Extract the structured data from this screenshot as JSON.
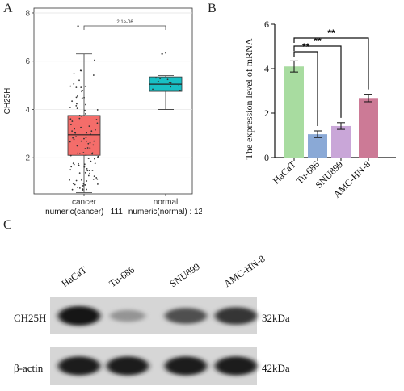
{
  "panels": {
    "a": "A",
    "b": "B",
    "c": "C"
  },
  "chart_data": [
    {
      "type": "box",
      "ylabel": "CH25H",
      "ylim": [
        0.5,
        8.2
      ],
      "yticks": [
        2,
        4,
        6,
        8
      ],
      "categories": [
        "cancer",
        "normal"
      ],
      "counts": [
        "numeric(cancer) : 111",
        "numeric(normal) : 12"
      ],
      "colors": [
        "#f46d6a",
        "#19bfc4"
      ],
      "boxes": [
        {
          "name": "cancer",
          "whisker_low": 0.55,
          "q1": 2.1,
          "median": 2.95,
          "q3": 3.75,
          "whisker_high": 6.3,
          "outliers": [
            7.45
          ]
        },
        {
          "name": "normal",
          "whisker_low": 4.0,
          "q1": 4.75,
          "median": 5.05,
          "q3": 5.35,
          "whisker_high": 5.4,
          "outliers": [
            6.3,
            6.35
          ]
        }
      ],
      "significance": "2.1e-06"
    },
    {
      "type": "bar",
      "ylabel": "The expression level of mRNA",
      "ylim": [
        0,
        6
      ],
      "yticks": [
        0,
        2,
        4,
        6
      ],
      "categories": [
        "HaCaT",
        "Tu-686",
        "SNU899",
        "AMC-HN-8"
      ],
      "values": [
        4.1,
        1.05,
        1.42,
        2.68
      ],
      "errors": [
        0.25,
        0.15,
        0.15,
        0.17
      ],
      "colors": [
        "#a8dca0",
        "#8aa9d6",
        "#c9a6d8",
        "#cc7a96"
      ],
      "significance": [
        {
          "from": "HaCaT",
          "to": "Tu-686",
          "label": "**"
        },
        {
          "from": "HaCaT",
          "to": "SNU899",
          "label": "**"
        },
        {
          "from": "HaCaT",
          "to": "AMC-HN-8",
          "label": "**"
        }
      ]
    }
  ],
  "western_blot": {
    "lanes": [
      "HaCaT",
      "Tu-686",
      "SNU899",
      "AMC-HN-8"
    ],
    "rows": [
      {
        "protein": "CH25H",
        "size": "32kDa",
        "intensity": [
          1.0,
          0.25,
          0.65,
          0.8
        ]
      },
      {
        "protein": "β-actin",
        "size": "42kDa",
        "intensity": [
          0.95,
          0.95,
          0.95,
          0.95
        ]
      }
    ]
  }
}
